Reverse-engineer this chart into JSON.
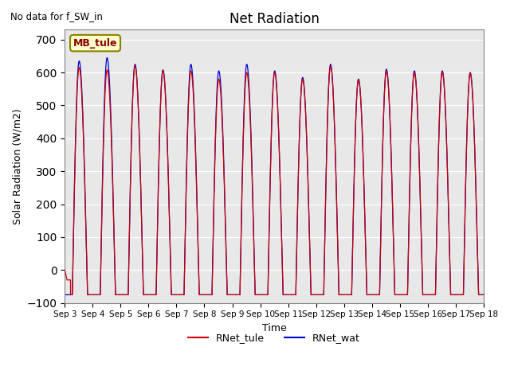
{
  "title": "Net Radiation",
  "ylabel": "Solar Radiation (W/m2)",
  "xlabel": "Time",
  "ylim": [
    -100,
    730
  ],
  "yticks": [
    -100,
    0,
    100,
    200,
    300,
    400,
    500,
    600,
    700
  ],
  "legend_label1": "RNet_tule",
  "legend_label2": "RNet_wat",
  "color1": "#cc0000",
  "color2": "#0000cc",
  "note": "No data for f_SW_in",
  "legend_box_label": "MB_tule",
  "legend_box_color": "#ffffcc",
  "legend_box_edge": "#8B8000",
  "bg_color": "#e8e8e8",
  "n_days": 15,
  "ppd": 288,
  "night_val": -75,
  "blue_peaks": [
    635,
    645,
    625,
    608,
    625,
    605,
    625,
    605,
    585,
    625,
    580,
    610,
    605,
    605,
    600
  ],
  "red_peaks": [
    615,
    608,
    620,
    605,
    605,
    580,
    600,
    600,
    580,
    620,
    578,
    605,
    600,
    602,
    598
  ],
  "figsize": [
    6.4,
    4.8
  ],
  "dpi": 100
}
